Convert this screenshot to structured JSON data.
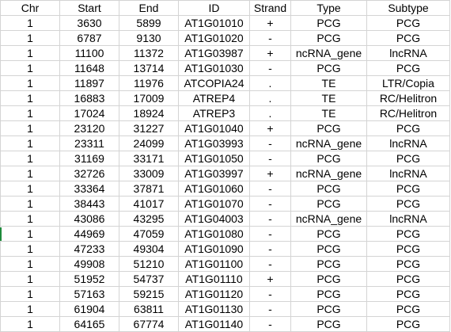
{
  "columns": [
    "Chr",
    "Start",
    "End",
    "ID",
    "Strand",
    "Type",
    "Subtype"
  ],
  "rows": [
    [
      "1",
      "3630",
      "5899",
      "AT1G01010",
      "+",
      "PCG",
      "PCG"
    ],
    [
      "1",
      "6787",
      "9130",
      "AT1G01020",
      "-",
      "PCG",
      "PCG"
    ],
    [
      "1",
      "11100",
      "11372",
      "AT1G03987",
      "+",
      "ncRNA_gene",
      "lncRNA"
    ],
    [
      "1",
      "11648",
      "13714",
      "AT1G01030",
      "-",
      "PCG",
      "PCG"
    ],
    [
      "1",
      "11897",
      "11976",
      "ATCOPIA24",
      ".",
      "TE",
      "LTR/Copia"
    ],
    [
      "1",
      "16883",
      "17009",
      "ATREP4",
      ".",
      "TE",
      "RC/Helitron"
    ],
    [
      "1",
      "17024",
      "18924",
      "ATREP3",
      ".",
      "TE",
      "RC/Helitron"
    ],
    [
      "1",
      "23120",
      "31227",
      "AT1G01040",
      "+",
      "PCG",
      "PCG"
    ],
    [
      "1",
      "23311",
      "24099",
      "AT1G03993",
      "-",
      "ncRNA_gene",
      "lncRNA"
    ],
    [
      "1",
      "31169",
      "33171",
      "AT1G01050",
      "-",
      "PCG",
      "PCG"
    ],
    [
      "1",
      "32726",
      "33009",
      "AT1G03997",
      "+",
      "ncRNA_gene",
      "lncRNA"
    ],
    [
      "1",
      "33364",
      "37871",
      "AT1G01060",
      "-",
      "PCG",
      "PCG"
    ],
    [
      "1",
      "38443",
      "41017",
      "AT1G01070",
      "-",
      "PCG",
      "PCG"
    ],
    [
      "1",
      "43086",
      "43295",
      "AT1G04003",
      "-",
      "ncRNA_gene",
      "lncRNA"
    ],
    [
      "1",
      "44969",
      "47059",
      "AT1G01080",
      "-",
      "PCG",
      "PCG"
    ],
    [
      "1",
      "47233",
      "49304",
      "AT1G01090",
      "-",
      "PCG",
      "PCG"
    ],
    [
      "1",
      "49908",
      "51210",
      "AT1G01100",
      "-",
      "PCG",
      "PCG"
    ],
    [
      "1",
      "51952",
      "54737",
      "AT1G01110",
      "+",
      "PCG",
      "PCG"
    ],
    [
      "1",
      "57163",
      "59215",
      "AT1G01120",
      "-",
      "PCG",
      "PCG"
    ],
    [
      "1",
      "61904",
      "63811",
      "AT1G01130",
      "-",
      "PCG",
      "PCG"
    ],
    [
      "1",
      "64165",
      "67774",
      "AT1G01140",
      "-",
      "PCG",
      "PCG"
    ]
  ]
}
